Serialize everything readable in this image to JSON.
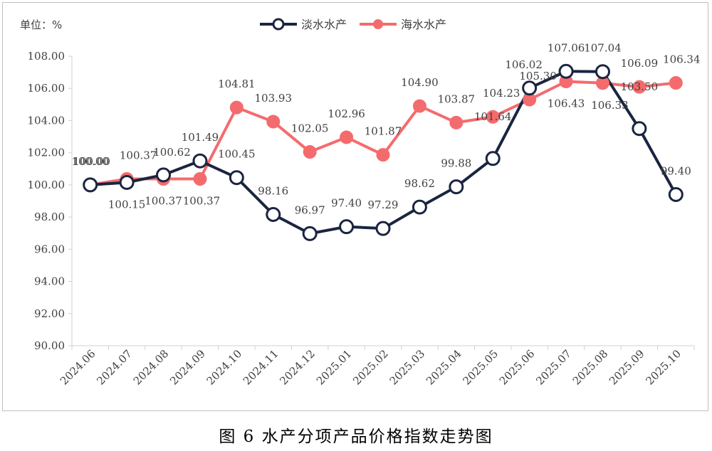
{
  "caption": "图 6  水产分项产品价格指数走势图",
  "chart_data": {
    "type": "line",
    "unit_label": "单位：%",
    "categories": [
      "2024.06",
      "2024.07",
      "2024.08",
      "2024.09",
      "2024.10",
      "2024.11",
      "2024.12",
      "2025.01",
      "2025.02",
      "2025.03",
      "2025.04",
      "2025.05",
      "2025.06",
      "2025.07",
      "2025.08",
      "2025.09",
      "2025.10"
    ],
    "ylim": [
      90,
      108
    ],
    "yticks": [
      "90.00",
      "92.00",
      "94.00",
      "96.00",
      "98.00",
      "100.00",
      "102.00",
      "104.00",
      "106.00",
      "108.00"
    ],
    "grid": false,
    "legend": "top-center",
    "series": [
      {
        "name": "淡水水产",
        "color": "#1a2540",
        "marker": "hollow-circle",
        "values": [
          100.0,
          100.15,
          100.62,
          101.49,
          100.45,
          98.16,
          96.97,
          97.4,
          97.29,
          98.62,
          99.88,
          101.64,
          106.02,
          107.06,
          107.04,
          103.5,
          99.4
        ],
        "labels": [
          "100.00",
          "100.15",
          "100.62",
          "101.49",
          "100.45",
          "98.16",
          "96.97",
          "97.40",
          "97.29",
          "98.62",
          "99.88",
          "101.64",
          "106.02",
          "107.06",
          "107.04",
          "103.50",
          "99.40"
        ]
      },
      {
        "name": "海水水产",
        "color": "#f46b6e",
        "marker": "filled-circle",
        "values": [
          100.0,
          100.37,
          100.37,
          100.37,
          104.81,
          103.93,
          102.05,
          102.96,
          101.87,
          104.9,
          103.87,
          104.23,
          105.3,
          106.43,
          106.33,
          106.09,
          106.34
        ],
        "labels": [
          "100.00",
          "100.37",
          "100.37",
          "100.37",
          "104.81",
          "103.93",
          "102.05",
          "102.96",
          "101.87",
          "104.90",
          "103.87",
          "104.23",
          "105.30",
          "106.43",
          "106.33",
          "106.09",
          "106.34"
        ]
      }
    ]
  }
}
